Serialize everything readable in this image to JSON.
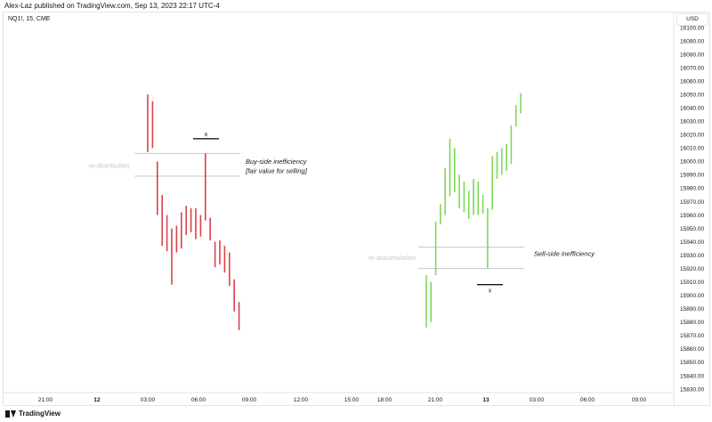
{
  "header": {
    "published_by": "Alex-Laz published on TradingView.com, Sep 13, 2023 22:17 UTC-4",
    "symbol_info": "NQ1!, 15, CME",
    "currency": "USD"
  },
  "footer": {
    "brand": "TradingView"
  },
  "colors": {
    "bear": "#d9434b",
    "bull": "#7ed957",
    "zone_line": "#c3c6ce",
    "axis_text": "#131722"
  },
  "chart_data": {
    "type": "bar",
    "xlabel": "",
    "ylabel": "",
    "ylim": [
      15825,
      16105
    ],
    "y_ticks": [
      16100,
      16090,
      16080,
      16070,
      16060,
      16050,
      16040,
      16030,
      16020,
      16010,
      16000,
      15990,
      15980,
      15970,
      15960,
      15950,
      15940,
      15930,
      15920,
      15910,
      15900,
      15890,
      15880,
      15870,
      15860,
      15850,
      15840,
      15830
    ],
    "y_tick_labels": [
      "16100.00",
      "16090.00",
      "16080.00",
      "16070.00",
      "16060.00",
      "16050.00",
      "16040.00",
      "16030.00",
      "16020.00",
      "16010.00",
      "16000.00",
      "15990.00",
      "15980.00",
      "15970.00",
      "15960.00",
      "15950.00",
      "15940.00",
      "15930.00",
      "15920.00",
      "15910.00",
      "15900.00",
      "15890.00",
      "15880.00",
      "15870.00",
      "15860.00",
      "15850.00",
      "15840.00",
      "15830.00"
    ],
    "x_ticks": [
      {
        "label": "21:00",
        "bold": false
      },
      {
        "label": "12",
        "bold": true
      },
      {
        "label": "03:00",
        "bold": false
      },
      {
        "label": "06:00",
        "bold": false
      },
      {
        "label": "09:00",
        "bold": false
      },
      {
        "label": "12:00",
        "bold": false
      },
      {
        "label": "15:00",
        "bold": false
      },
      {
        "label": "18:00",
        "bold": false
      },
      {
        "label": "21:00",
        "bold": false
      },
      {
        "label": "13",
        "bold": true
      },
      {
        "label": "03:00",
        "bold": false
      },
      {
        "label": "06:00",
        "bold": false
      },
      {
        "label": "09:00",
        "bold": false
      }
    ],
    "bear_bars": [
      {
        "high": 16050,
        "low": 16007
      },
      {
        "high": 16045,
        "low": 16010
      },
      {
        "high": 16000,
        "low": 15960
      },
      {
        "high": 15975,
        "low": 15937
      },
      {
        "high": 15960,
        "low": 15933
      },
      {
        "high": 15950,
        "low": 15908
      },
      {
        "high": 15952,
        "low": 15932
      },
      {
        "high": 15962,
        "low": 15935
      },
      {
        "high": 15967,
        "low": 15945
      },
      {
        "high": 15965,
        "low": 15947
      },
      {
        "high": 15965,
        "low": 15942
      },
      {
        "high": 15960,
        "low": 15944
      },
      {
        "high": 16006,
        "low": 15956
      },
      {
        "high": 15958,
        "low": 15941
      },
      {
        "high": 15940,
        "low": 15921
      },
      {
        "high": 15941,
        "low": 15923
      },
      {
        "high": 15937,
        "low": 15917
      },
      {
        "high": 15932,
        "low": 15907
      },
      {
        "high": 15912,
        "low": 15888
      },
      {
        "high": 15895,
        "low": 15874
      }
    ],
    "bull_bars": [
      {
        "high": 15915,
        "low": 15876
      },
      {
        "high": 15910,
        "low": 15880
      },
      {
        "high": 15955,
        "low": 15915
      },
      {
        "high": 15968,
        "low": 15953
      },
      {
        "high": 15995,
        "low": 15960
      },
      {
        "high": 16017,
        "low": 15974
      },
      {
        "high": 16010,
        "low": 15977
      },
      {
        "high": 15990,
        "low": 15965
      },
      {
        "high": 15985,
        "low": 15962
      },
      {
        "high": 15978,
        "low": 15957
      },
      {
        "high": 15987,
        "low": 15960
      },
      {
        "high": 15985,
        "low": 15960
      },
      {
        "high": 15975,
        "low": 15961
      },
      {
        "high": 15965,
        "low": 15920
      },
      {
        "high": 16004,
        "low": 15964
      },
      {
        "high": 16007,
        "low": 15987
      },
      {
        "high": 16010,
        "low": 15990
      },
      {
        "high": 16013,
        "low": 15993
      },
      {
        "high": 16027,
        "low": 15998
      },
      {
        "high": 16042,
        "low": 16026
      },
      {
        "high": 16051,
        "low": 16036
      }
    ],
    "annotations": {
      "buy_side_label_1": "Buy-side inefficiency",
      "buy_side_label_2": "[fair value for selling]",
      "sell_side_label": "Sell-side inefficiency",
      "re_distribution": "re-distribution",
      "re_accumulation": "re-accumulation",
      "x_marker_top": "x",
      "x_marker_bottom": "x"
    },
    "zones": {
      "distribution_upper": 16006,
      "distribution_lower": 15989,
      "accumulation_upper": 15936,
      "accumulation_lower": 15920,
      "x_marker_top_price": 16017,
      "x_marker_bottom_price": 15908
    }
  }
}
